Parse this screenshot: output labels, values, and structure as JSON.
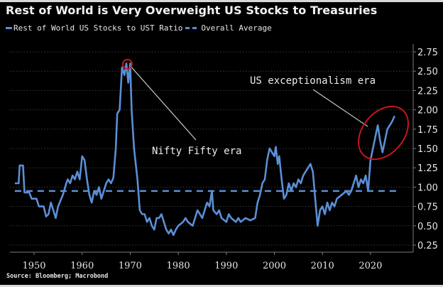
{
  "chart_data": {
    "type": "line",
    "title": "Rest of World is Very Overweight US Stocks to Treasuries",
    "source": "Source: Bloomberg; Macrobond",
    "xlabel": "",
    "ylabel": "",
    "xlim": [
      1946,
      2029
    ],
    "ylim": [
      0.25,
      2.75
    ],
    "x_ticks": [
      1950,
      1960,
      1970,
      1980,
      1990,
      2000,
      2010,
      2020
    ],
    "y_ticks": [
      0.25,
      0.5,
      0.75,
      1.0,
      1.25,
      1.5,
      1.75,
      2.0,
      2.25,
      2.5,
      2.75
    ],
    "y_tick_labels": [
      "0.25",
      "0.50",
      "0.75",
      "1.00",
      "1.25",
      "1.50",
      "1.75",
      "2.00",
      "2.25",
      "2.50",
      "2.75"
    ],
    "y_axis_side": "right",
    "grid": "horizontal dotted",
    "legend_position": "top-left",
    "colors": {
      "series": "#5b8fd6",
      "annotation_circle": "#c8161d",
      "annotation_line": "#c8c8c8",
      "background": "#000000"
    },
    "series": [
      {
        "name": "Rest of World US Stocks to UST Ratio",
        "style": "solid",
        "x": [
          1946,
          1946.8,
          1947,
          1947.7,
          1948,
          1949,
          1949.5,
          1950.5,
          1951,
          1952,
          1952.5,
          1953,
          1953.5,
          1954,
          1954.5,
          1955,
          1956,
          1956.7,
          1957,
          1957.5,
          1958,
          1958.5,
          1959,
          1959.5,
          1960,
          1960.5,
          1961,
          1961.5,
          1962,
          1962.5,
          1963,
          1963.5,
          1964,
          1964.5,
          1965,
          1965.5,
          1966,
          1966.5,
          1967,
          1967.3,
          1967.8,
          1968.3,
          1968.8,
          1969.2,
          1969.6,
          1970,
          1970.3,
          1970.8,
          1971.5,
          1972,
          1972.5,
          1973,
          1973.5,
          1974,
          1974.5,
          1975,
          1975.5,
          1976,
          1976.5,
          1977,
          1977.5,
          1978,
          1978.5,
          1979,
          1979.5,
          1980,
          1981,
          1981.5,
          1982,
          1983,
          1983.5,
          1984,
          1984.5,
          1985,
          1985.5,
          1986,
          1986.5,
          1987,
          1987.3,
          1988,
          1988.5,
          1989,
          1990,
          1990.5,
          1991,
          1992,
          1992.5,
          1993,
          1994,
          1995,
          1996,
          1996.5,
          1997,
          1997.5,
          1998,
          1998.5,
          1999,
          1999.5,
          2000,
          2000.3,
          2000.7,
          2001,
          2001.5,
          2002,
          2002.5,
          2003,
          2003.5,
          2004,
          2004.5,
          2005,
          2005.5,
          2006,
          2006.5,
          2007,
          2007.5,
          2008,
          2008.5,
          2009,
          2009.5,
          2010,
          2010.5,
          2011,
          2011.5,
          2012,
          2012.5,
          2013,
          2014,
          2015,
          2015.5,
          2016,
          2016.5,
          2017,
          2017.5,
          2018,
          2018.5,
          2019,
          2019.5,
          2020,
          2020.5,
          2021,
          2021.5,
          2022,
          2022.5,
          2023,
          2023.5,
          2024,
          2024.5,
          2025
        ],
        "values": [
          1.05,
          1.05,
          1.28,
          1.28,
          0.93,
          0.93,
          0.85,
          0.85,
          0.75,
          0.75,
          0.62,
          0.65,
          0.8,
          0.7,
          0.6,
          0.75,
          0.9,
          1.05,
          1.1,
          1.05,
          1.15,
          1.1,
          1.2,
          1.1,
          1.4,
          1.35,
          1.1,
          0.9,
          0.8,
          0.95,
          0.9,
          1.0,
          0.85,
          0.95,
          1.05,
          1.1,
          1.05,
          1.12,
          1.5,
          1.95,
          2.0,
          2.55,
          2.45,
          2.6,
          2.35,
          2.6,
          2.0,
          1.5,
          1.1,
          0.7,
          0.65,
          0.65,
          0.55,
          0.6,
          0.5,
          0.45,
          0.6,
          0.6,
          0.65,
          0.55,
          0.45,
          0.4,
          0.45,
          0.38,
          0.45,
          0.5,
          0.55,
          0.6,
          0.55,
          0.5,
          0.6,
          0.7,
          0.65,
          0.6,
          0.7,
          0.8,
          0.75,
          0.95,
          0.7,
          0.65,
          0.7,
          0.6,
          0.55,
          0.65,
          0.6,
          0.55,
          0.6,
          0.55,
          0.6,
          0.57,
          0.6,
          0.8,
          0.9,
          1.05,
          1.1,
          1.35,
          1.5,
          1.45,
          1.4,
          1.52,
          1.3,
          1.4,
          1.1,
          0.85,
          0.9,
          1.05,
          0.95,
          1.05,
          1.0,
          1.1,
          1.05,
          1.15,
          1.2,
          1.25,
          1.3,
          1.2,
          0.85,
          0.5,
          0.7,
          0.75,
          0.65,
          0.8,
          0.7,
          0.8,
          0.75,
          0.85,
          0.9,
          0.95,
          0.9,
          0.95,
          1.05,
          1.15,
          1.0,
          1.1,
          1.05,
          1.15,
          0.95,
          1.35,
          1.5,
          1.65,
          1.8,
          1.6,
          1.45,
          1.6,
          1.75,
          1.8,
          1.85,
          1.92
        ]
      },
      {
        "name": "Overall Average",
        "style": "dashed",
        "x": [
          1946,
          2025
        ],
        "values": [
          0.95,
          0.95
        ]
      }
    ],
    "annotations": [
      {
        "text": "Nifty Fifty era",
        "target_x": 1969.5,
        "target_y": 2.6,
        "label_x": 1975,
        "label_y": 1.5,
        "marker": "circle"
      },
      {
        "text": "US exceptionalism era",
        "target_x": 2021,
        "target_y": 1.82,
        "label_x": 2000,
        "label_y": 2.25,
        "marker": "ellipse"
      }
    ]
  }
}
